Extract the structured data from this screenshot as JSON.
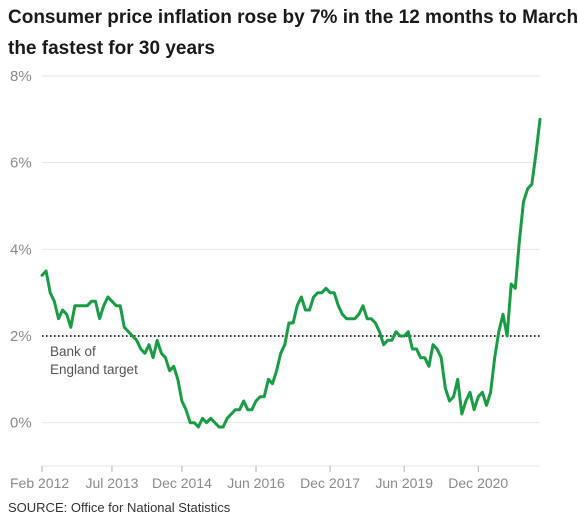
{
  "title_lines": [
    "Consumer price inflation rose by 7% in the 12 months to March",
    "the fastest for 30 years"
  ],
  "source": "SOURCE: Office for National Statistics",
  "colors": {
    "line": "#1a9c47",
    "grid": "#e4e4e4",
    "axis_text": "#8a8a8a",
    "target_line": "#333333",
    "annotation": "#555555"
  },
  "chart_data": {
    "type": "line",
    "title": "Consumer price inflation rose by 7% in the 12 months to March the fastest for 30 years",
    "xlabel": "",
    "ylabel": "",
    "ylim": [
      -1,
      8
    ],
    "xlim": [
      "2012-02",
      "2022-03"
    ],
    "y_ticks": [
      0,
      2,
      4,
      6,
      8
    ],
    "y_tick_labels": [
      "0%",
      "2%",
      "4%",
      "6%",
      "8%"
    ],
    "x_ticks": [
      "2012-02",
      "2013-07",
      "2014-12",
      "2016-06",
      "2017-12",
      "2019-06",
      "2020-12"
    ],
    "x_tick_labels": [
      "Feb 2012",
      "Jul 2013",
      "Dec 2014",
      "Jun 2016",
      "Dec 2017",
      "Jun 2019",
      "Dec 2020"
    ],
    "grid": true,
    "reference_line": {
      "value": 2,
      "label_lines": [
        "Bank of",
        "England target"
      ],
      "style": "dotted"
    },
    "series": [
      {
        "name": "",
        "x": [
          "2012-02",
          "2012-03",
          "2012-04",
          "2012-05",
          "2012-06",
          "2012-07",
          "2012-08",
          "2012-09",
          "2012-10",
          "2012-11",
          "2012-12",
          "2013-01",
          "2013-02",
          "2013-03",
          "2013-04",
          "2013-05",
          "2013-06",
          "2013-07",
          "2013-08",
          "2013-09",
          "2013-10",
          "2013-11",
          "2013-12",
          "2014-01",
          "2014-02",
          "2014-03",
          "2014-04",
          "2014-05",
          "2014-06",
          "2014-07",
          "2014-08",
          "2014-09",
          "2014-10",
          "2014-11",
          "2014-12",
          "2015-01",
          "2015-02",
          "2015-03",
          "2015-04",
          "2015-05",
          "2015-06",
          "2015-07",
          "2015-08",
          "2015-09",
          "2015-10",
          "2015-11",
          "2015-12",
          "2016-01",
          "2016-02",
          "2016-03",
          "2016-04",
          "2016-05",
          "2016-06",
          "2016-07",
          "2016-08",
          "2016-09",
          "2016-10",
          "2016-11",
          "2016-12",
          "2017-01",
          "2017-02",
          "2017-03",
          "2017-04",
          "2017-05",
          "2017-06",
          "2017-07",
          "2017-08",
          "2017-09",
          "2017-10",
          "2017-11",
          "2017-12",
          "2018-01",
          "2018-02",
          "2018-03",
          "2018-04",
          "2018-05",
          "2018-06",
          "2018-07",
          "2018-08",
          "2018-09",
          "2018-10",
          "2018-11",
          "2018-12",
          "2019-01",
          "2019-02",
          "2019-03",
          "2019-04",
          "2019-05",
          "2019-06",
          "2019-07",
          "2019-08",
          "2019-09",
          "2019-10",
          "2019-11",
          "2019-12",
          "2020-01",
          "2020-02",
          "2020-03",
          "2020-04",
          "2020-05",
          "2020-06",
          "2020-07",
          "2020-08",
          "2020-09",
          "2020-10",
          "2020-11",
          "2020-12",
          "2021-01",
          "2021-02",
          "2021-03",
          "2021-04",
          "2021-05",
          "2021-06",
          "2021-07",
          "2021-08",
          "2021-09",
          "2021-10",
          "2021-11",
          "2021-12",
          "2022-01",
          "2022-02",
          "2022-03"
        ],
        "values": [
          3.4,
          3.5,
          3.0,
          2.8,
          2.4,
          2.6,
          2.5,
          2.2,
          2.7,
          2.7,
          2.7,
          2.7,
          2.8,
          2.8,
          2.4,
          2.7,
          2.9,
          2.8,
          2.7,
          2.7,
          2.2,
          2.1,
          2.0,
          1.9,
          1.7,
          1.6,
          1.8,
          1.5,
          1.9,
          1.6,
          1.5,
          1.2,
          1.3,
          1.0,
          0.5,
          0.3,
          0.0,
          0.0,
          -0.1,
          0.1,
          0.0,
          0.1,
          0.0,
          -0.1,
          -0.1,
          0.1,
          0.2,
          0.3,
          0.3,
          0.5,
          0.3,
          0.3,
          0.5,
          0.6,
          0.6,
          1.0,
          0.9,
          1.2,
          1.6,
          1.8,
          2.3,
          2.3,
          2.7,
          2.9,
          2.6,
          2.6,
          2.9,
          3.0,
          3.0,
          3.1,
          3.0,
          3.0,
          2.7,
          2.5,
          2.4,
          2.4,
          2.4,
          2.5,
          2.7,
          2.4,
          2.4,
          2.3,
          2.1,
          1.8,
          1.9,
          1.9,
          2.1,
          2.0,
          2.0,
          2.1,
          1.7,
          1.7,
          1.5,
          1.5,
          1.3,
          1.8,
          1.7,
          1.5,
          0.8,
          0.5,
          0.6,
          1.0,
          0.2,
          0.5,
          0.7,
          0.3,
          0.6,
          0.7,
          0.4,
          0.7,
          1.5,
          2.1,
          2.5,
          2.0,
          3.2,
          3.1,
          4.2,
          5.1,
          5.4,
          5.5,
          6.2,
          7.0
        ]
      }
    ]
  }
}
